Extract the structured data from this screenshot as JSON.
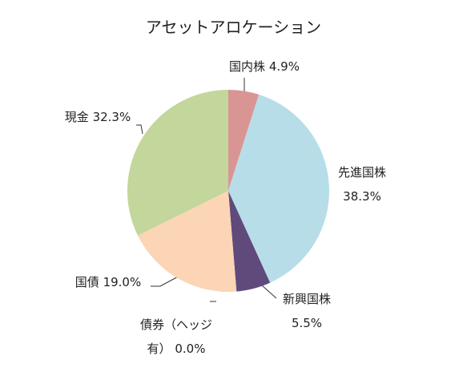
{
  "chart_data": {
    "type": "pie",
    "title": "アセットアロケーション",
    "categories": [
      "国内株",
      "先進国株",
      "新興国株",
      "債券（ヘッジ有）",
      "国債",
      "現金"
    ],
    "values": [
      4.9,
      38.3,
      5.5,
      0.0,
      19.0,
      32.3
    ],
    "value_labels": [
      "4.9%",
      "38.3%",
      "5.5%",
      "0.0%",
      "19.0%",
      "32.3%"
    ],
    "colors": [
      "#d99594",
      "#b7dde8",
      "#604a7b",
      "#8db3e2",
      "#fbd5b5",
      "#c3d69b"
    ]
  }
}
